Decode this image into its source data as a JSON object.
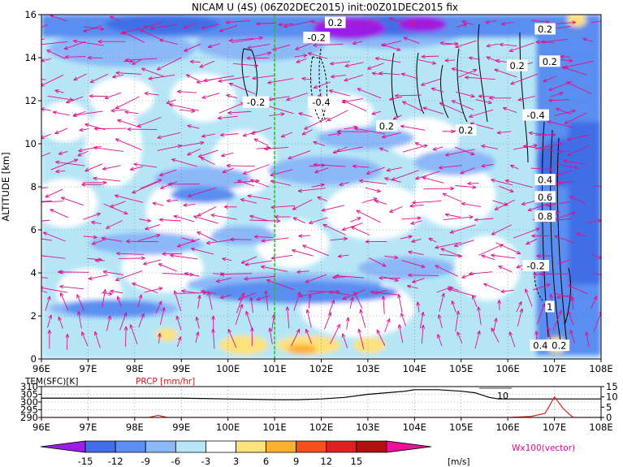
{
  "chart_data": [
    {
      "type": "heatmap",
      "title": "NICAM U (4S) (06Z02DEC2015) init:00Z01DEC2015 fix",
      "xlabel": "",
      "ylabel": "ALTITUDE [km]",
      "x_ticks": [
        "96E",
        "97E",
        "98E",
        "99E",
        "100E",
        "101E",
        "102E",
        "103E",
        "104E",
        "105E",
        "106E",
        "107E",
        "108E"
      ],
      "x_values": [
        96,
        97,
        98,
        99,
        100,
        101,
        102,
        103,
        104,
        105,
        106,
        107,
        108
      ],
      "y_ticks": [
        "0",
        "2",
        "4",
        "6",
        "8",
        "10",
        "12",
        "14",
        "16"
      ],
      "y_values": [
        0,
        2,
        4,
        6,
        8,
        10,
        12,
        14,
        16
      ],
      "xlim": [
        96,
        108
      ],
      "ylim": [
        0,
        16
      ],
      "marker_line_x": 101,
      "contour_labels": [
        {
          "text": "-0.2",
          "x": 100.6,
          "y": 11.9
        },
        {
          "text": "-0.2",
          "x": 101.9,
          "y": 14.9
        },
        {
          "text": "-0.4",
          "x": 102.0,
          "y": 11.9
        },
        {
          "text": "0.2",
          "x": 102.3,
          "y": 15.6
        },
        {
          "text": "0.2",
          "x": 103.4,
          "y": 10.8
        },
        {
          "text": "0.2",
          "x": 105.1,
          "y": 10.6
        },
        {
          "text": "0.2",
          "x": 106.2,
          "y": 13.6
        },
        {
          "text": "0.2",
          "x": 106.8,
          "y": 15.3
        },
        {
          "text": "0.2",
          "x": 106.9,
          "y": 13.8
        },
        {
          "text": "-0.4",
          "x": 106.6,
          "y": 11.3
        },
        {
          "text": "0.4",
          "x": 106.8,
          "y": 8.3
        },
        {
          "text": "0.6",
          "x": 106.8,
          "y": 7.5
        },
        {
          "text": "0.8",
          "x": 106.8,
          "y": 6.6
        },
        {
          "text": "-0.2",
          "x": 106.6,
          "y": 4.3
        },
        {
          "text": "1",
          "x": 106.9,
          "y": 2.4
        },
        {
          "text": "0.4",
          "x": 106.7,
          "y": 0.6
        },
        {
          "text": "0.2",
          "x": 107.1,
          "y": 0.6
        }
      ]
    },
    {
      "type": "line",
      "series": [
        {
          "name": "TEM(SFC)[K]",
          "x": [
            96,
            97,
            98,
            99,
            100,
            101,
            101.5,
            102,
            102.5,
            103,
            103.4,
            103.8,
            104,
            104.5,
            105,
            105.3,
            105.6,
            105.8,
            106,
            106.5,
            107,
            107.5,
            108
          ],
          "values": [
            302.5,
            302.5,
            302.5,
            302.5,
            302,
            301.5,
            301.5,
            302,
            303,
            305,
            306,
            307,
            308,
            308,
            307,
            306,
            303,
            302,
            302,
            302,
            302,
            302,
            302
          ]
        },
        {
          "name": "PRCP [mm/hr]",
          "x": [
            96,
            98.3,
            98.5,
            98.7,
            100,
            101,
            102,
            103,
            104,
            105,
            105.5,
            106,
            106.5,
            106.8,
            107,
            107.2,
            107.4,
            108
          ],
          "values": [
            0,
            0,
            1,
            0,
            0,
            0,
            0,
            0,
            0,
            0,
            0,
            0,
            0.5,
            2,
            10,
            4,
            0,
            0
          ]
        }
      ],
      "x_ticks": [
        "96E",
        "97E",
        "98E",
        "99E",
        "100E",
        "101E",
        "102E",
        "103E",
        "104E",
        "105E",
        "106E",
        "107E",
        "108E"
      ],
      "left_axis_ticks": [
        "310",
        "305",
        "300",
        "295",
        "290"
      ],
      "right_axis_ticks": [
        "15",
        "10",
        "5",
        "0"
      ],
      "temp_range": [
        290,
        310
      ],
      "prcp_range": [
        0,
        15
      ],
      "annotations": [
        "10"
      ]
    }
  ],
  "colorbar": {
    "ticks": [
      "-15",
      "-12",
      "-9",
      "-6",
      "-3",
      "3",
      "6",
      "9",
      "12",
      "15"
    ],
    "unit": "[m/s]",
    "colors": [
      "#9a1ee6",
      "#3f6ee6",
      "#5a8ef0",
      "#8cb8f8",
      "#b6e6f6",
      "#ffffff",
      "#fde17a",
      "#fdb030",
      "#f84f1e",
      "#e02020",
      "#b01010",
      "#f0109a"
    ]
  },
  "vector_label": "Wx100(vector)"
}
